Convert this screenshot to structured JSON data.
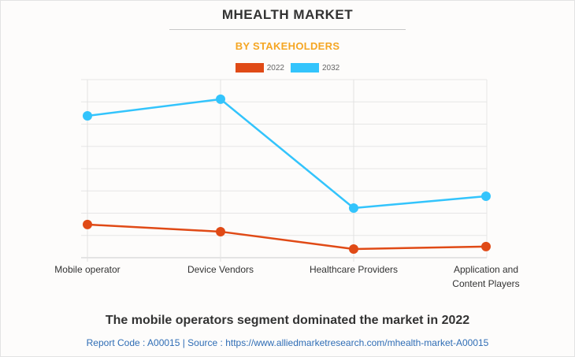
{
  "header": {
    "title": "MHEALTH MARKET",
    "subtitle": "BY STAKEHOLDERS"
  },
  "legend": [
    {
      "label": "2022",
      "color": "#e04a16"
    },
    {
      "label": "2032",
      "color": "#33c4fc"
    }
  ],
  "footer": {
    "headline": "The mobile operators segment dominated the market in 2022",
    "source": "Report Code : A00015  |  Source : https://www.alliedmarketresearch.com/mhealth-market-A00015"
  },
  "chart_data": {
    "type": "line",
    "title": "MHEALTH MARKET",
    "subtitle": "BY STAKEHOLDERS",
    "xlabel": "",
    "ylabel": "",
    "categories": [
      "Mobile operator",
      "Device Vendors",
      "Healthcare Providers",
      "Application and Content Players"
    ],
    "category_lines": [
      [
        "Mobile operator"
      ],
      [
        "Device Vendors"
      ],
      [
        "Healthcare Providers"
      ],
      [
        "Application and",
        "Content Players"
      ]
    ],
    "series": [
      {
        "name": "2022",
        "color": "#e04a16",
        "values": [
          1.49,
          1.17,
          0.39,
          0.5
        ]
      },
      {
        "name": "2032",
        "color": "#33c4fc",
        "values": [
          6.37,
          7.12,
          2.23,
          2.76
        ]
      }
    ],
    "ylim": [
      0,
      8
    ],
    "y_gridlines": 8,
    "y_tick_labels_visible": false,
    "grid": true,
    "legend_position": "top-center",
    "value_units_note": "no y-axis scale shown; values estimated in gridline units"
  }
}
